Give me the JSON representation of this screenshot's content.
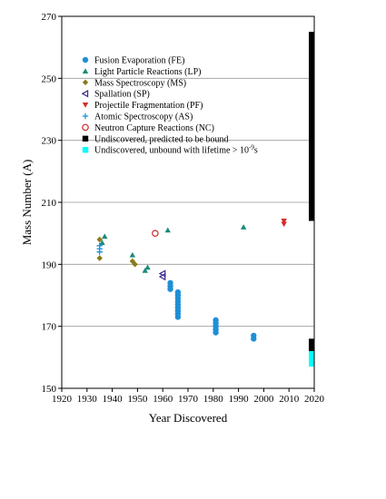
{
  "chart_data": {
    "type": "scatter",
    "xlabel": "Year Discovered",
    "ylabel": "Mass Number (A)",
    "xlim": [
      1920,
      2020
    ],
    "ylim": [
      150,
      270
    ],
    "x_ticks": [
      "1920",
      "1930",
      "1940",
      "1950",
      "1960",
      "1970",
      "1980",
      "1990",
      "2000",
      "2010",
      "2020"
    ],
    "y_ticks": [
      "150",
      "170",
      "190",
      "210",
      "230",
      "250",
      "270"
    ],
    "grid": "horizontal",
    "legend_position": "top-left",
    "series": [
      {
        "name": "Fusion Evaporation (FE)",
        "marker": "circle",
        "color": "#1f8fd6",
        "points": [
          [
            1963,
            184
          ],
          [
            1963,
            183
          ],
          [
            1963,
            182
          ],
          [
            1966,
            181
          ],
          [
            1966,
            180
          ],
          [
            1966,
            179
          ],
          [
            1966,
            178
          ],
          [
            1966,
            177
          ],
          [
            1966,
            176
          ],
          [
            1966,
            175
          ],
          [
            1966,
            174
          ],
          [
            1966,
            173
          ],
          [
            1981,
            172
          ],
          [
            1981,
            171
          ],
          [
            1981,
            170
          ],
          [
            1981,
            169
          ],
          [
            1981,
            168
          ],
          [
            1996,
            167
          ],
          [
            1996,
            166
          ]
        ]
      },
      {
        "name": "Light Particle Reactions (LP)",
        "marker": "triangle-up",
        "color": "#1a8a7a",
        "points": [
          [
            1936,
            197
          ],
          [
            1937,
            199
          ],
          [
            1948,
            193
          ],
          [
            1953,
            188
          ],
          [
            1954,
            189
          ],
          [
            1962,
            201
          ],
          [
            1992,
            202
          ]
        ]
      },
      {
        "name": "Mass Spectroscopy (MS)",
        "marker": "diamond",
        "color": "#8a7a1a",
        "points": [
          [
            1935,
            198
          ],
          [
            1935,
            192
          ],
          [
            1948,
            191
          ],
          [
            1949,
            190
          ]
        ]
      },
      {
        "name": "Spallation (SP)",
        "marker": "triangle-left",
        "color": "#3a2a8a",
        "points": [
          [
            1960,
            187
          ],
          [
            1960,
            186
          ]
        ]
      },
      {
        "name": "Projectile Fragmentation (PF)",
        "marker": "triangle-down",
        "color": "#d02a2a",
        "points": [
          [
            2008,
            204
          ],
          [
            2008,
            203
          ]
        ]
      },
      {
        "name": "Atomic Spectroscopy (AS)",
        "marker": "plus",
        "color": "#1f8fd6",
        "points": [
          [
            1935,
            196
          ],
          [
            1935,
            195
          ],
          [
            1935,
            194
          ]
        ]
      },
      {
        "name": "Neutron Capture Reactions (NC)",
        "marker": "circle-open",
        "color": "#d02a2a",
        "points": [
          [
            1957,
            200
          ]
        ]
      }
    ],
    "bars": [
      {
        "name": "Undiscovered, predicted to be bound",
        "color": "#000000",
        "ranges": [
          [
            204,
            265
          ],
          [
            162,
            166
          ]
        ]
      },
      {
        "name": "Undiscovered, unbound with lifetime > 10^-9 s",
        "color": "#00ffff",
        "ranges": [
          [
            157,
            162
          ]
        ]
      }
    ],
    "legend": [
      {
        "label": "Fusion Evaporation (FE)",
        "marker": "circle",
        "color": "#1f8fd6"
      },
      {
        "label": "Light Particle Reactions (LP)",
        "marker": "triangle-up",
        "color": "#1a8a7a"
      },
      {
        "label": "Mass Spectroscopy (MS)",
        "marker": "diamond",
        "color": "#8a7a1a"
      },
      {
        "label": "Spallation (SP)",
        "marker": "triangle-left",
        "color": "#3a2a8a"
      },
      {
        "label": "Projectile Fragmentation (PF)",
        "marker": "triangle-down",
        "color": "#d02a2a"
      },
      {
        "label": "Atomic Spectroscopy (AS)",
        "marker": "plus",
        "color": "#1f8fd6"
      },
      {
        "label": "Neutron Capture Reactions (NC)",
        "marker": "circle-open",
        "color": "#d02a2a"
      },
      {
        "label": "Undiscovered, predicted to be bound",
        "marker": "square",
        "color": "#000000"
      },
      {
        "label": "Undiscovered, unbound with lifetime > 10",
        "sup": "-9",
        "suffix": "s",
        "marker": "square",
        "color": "#00ffff"
      }
    ]
  }
}
